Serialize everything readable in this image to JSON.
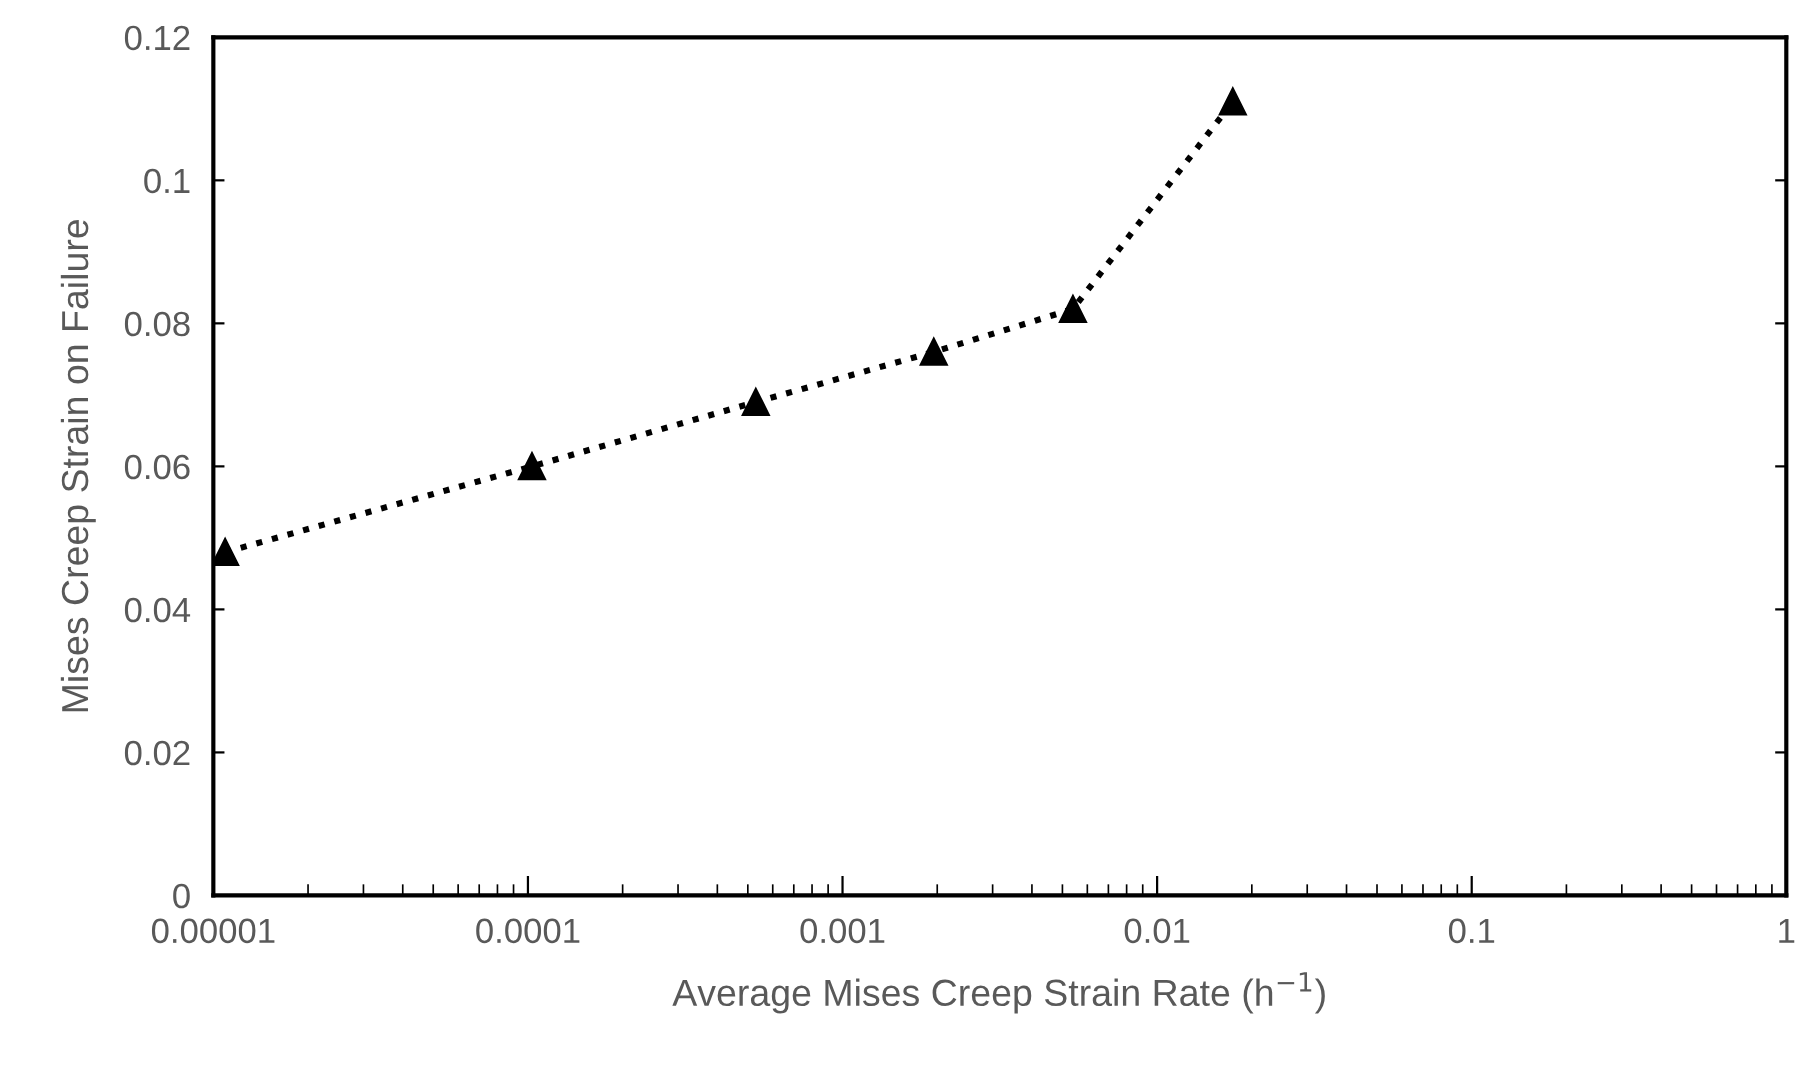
{
  "chart_data": {
    "type": "line",
    "xlabel": "Average Mises Creep Strain Rate (h$^{−1}$)",
    "ylabel": "Mises Creep Strain on Failure",
    "log": "x",
    "x": [
      1.09e-05,
      0.000103,
      0.00053,
      0.00195,
      0.0054,
      0.0174
    ],
    "series": [
      {
        "color": "#000000",
        "values": [
          0.048,
          0.06,
          0.069,
          0.076,
          0.082,
          0.111
        ]
      }
    ],
    "xlim": [
      1e-05,
      1
    ],
    "xticks": [
      {
        "value": 1e-05,
        "label": "0.00001"
      },
      {
        "value": 0.0001,
        "label": "0.0001"
      },
      {
        "value": 0.001,
        "label": "0.001"
      },
      {
        "value": 0.01,
        "label": "0.01"
      },
      {
        "value": 0.1,
        "label": "0.1"
      },
      1
    ],
    "ylim": [
      0,
      0.12
    ],
    "yticks": [
      0,
      0.02,
      0.04,
      0.06,
      0.08,
      0.1,
      0.12
    ],
    "marker": "triangle",
    "line_style": "dotted",
    "grid": false,
    "legend": false
  }
}
